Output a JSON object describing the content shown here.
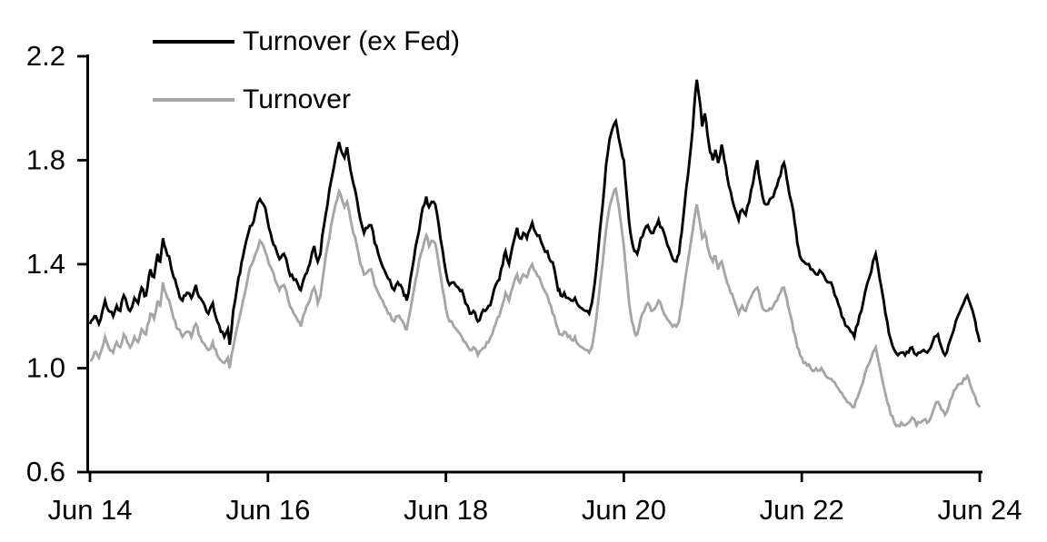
{
  "page": {
    "background": "#ffffff",
    "axis_color": "#000000"
  },
  "chart_data": {
    "type": "line",
    "title": "",
    "xlabel": "",
    "ylabel": "",
    "legend_position": "top-left",
    "grid": false,
    "x_axis": {
      "tick_labels": [
        "Jun 14",
        "Jun 16",
        "Jun 18",
        "Jun 20",
        "Jun 22",
        "Jun 24"
      ],
      "range_years": [
        0,
        10
      ]
    },
    "y_axis": {
      "ticks": [
        0.6,
        1.0,
        1.4,
        1.8,
        2.2
      ],
      "tick_labels": [
        "0.6",
        "1.0",
        "1.4",
        "1.8",
        "2.2"
      ],
      "range": [
        0.6,
        2.2
      ]
    },
    "x_years": [
      0.0,
      0.05,
      0.1,
      0.14,
      0.17,
      0.21,
      0.26,
      0.3,
      0.34,
      0.38,
      0.42,
      0.45,
      0.5,
      0.54,
      0.58,
      0.63,
      0.68,
      0.72,
      0.76,
      0.79,
      0.82,
      0.85,
      0.89,
      0.94,
      0.99,
      1.04,
      1.09,
      1.14,
      1.19,
      1.24,
      1.29,
      1.33,
      1.38,
      1.43,
      1.47,
      1.51,
      1.55,
      1.57,
      1.61,
      1.67,
      1.72,
      1.78,
      1.82,
      1.86,
      1.91,
      1.95,
      1.99,
      2.03,
      2.08,
      2.13,
      2.18,
      2.23,
      2.29,
      2.34,
      2.37,
      2.42,
      2.47,
      2.52,
      2.56,
      2.59,
      2.63,
      2.67,
      2.71,
      2.76,
      2.8,
      2.83,
      2.86,
      2.89,
      2.93,
      2.96,
      3.0,
      3.04,
      3.08,
      3.12,
      3.16,
      3.2,
      3.24,
      3.29,
      3.33,
      3.37,
      3.42,
      3.46,
      3.49,
      3.53,
      3.56,
      3.6,
      3.64,
      3.68,
      3.72,
      3.76,
      3.78,
      3.81,
      3.84,
      3.88,
      3.92,
      3.96,
      4.0,
      4.04,
      4.09,
      4.14,
      4.18,
      4.22,
      4.27,
      4.31,
      4.36,
      4.4,
      4.44,
      4.48,
      4.52,
      4.56,
      4.6,
      4.64,
      4.67,
      4.71,
      4.75,
      4.8,
      4.83,
      4.87,
      4.91,
      4.94,
      4.97,
      5.01,
      5.05,
      5.09,
      5.14,
      5.18,
      5.22,
      5.26,
      5.29,
      5.33,
      5.37,
      5.41,
      5.45,
      5.49,
      5.53,
      5.57,
      5.61,
      5.64,
      5.67,
      5.71,
      5.76,
      5.8,
      5.84,
      5.88,
      5.91,
      5.94,
      5.97,
      6.0,
      6.03,
      6.06,
      6.09,
      6.12,
      6.15,
      6.19,
      6.23,
      6.27,
      6.31,
      6.35,
      6.39,
      6.43,
      6.47,
      6.51,
      6.55,
      6.59,
      6.62,
      6.65,
      6.68,
      6.72,
      6.76,
      6.79,
      6.82,
      6.84,
      6.86,
      6.88,
      6.91,
      6.94,
      6.97,
      7.0,
      7.03,
      7.06,
      7.1,
      7.13,
      7.16,
      7.2,
      7.24,
      7.29,
      7.33,
      7.37,
      7.41,
      7.45,
      7.5,
      7.53,
      7.56,
      7.6,
      7.64,
      7.68,
      7.72,
      7.76,
      7.8,
      7.83,
      7.86,
      7.89,
      7.92,
      7.95,
      7.98,
      8.02,
      8.06,
      8.1,
      8.14,
      8.18,
      8.22,
      8.27,
      8.31,
      8.35,
      8.39,
      8.43,
      8.47,
      8.51,
      8.55,
      8.59,
      8.63,
      8.67,
      8.71,
      8.76,
      8.8,
      8.83,
      8.86,
      8.89,
      8.92,
      8.96,
      9.0,
      9.04,
      9.08,
      9.12,
      9.16,
      9.2,
      9.24,
      9.29,
      9.33,
      9.37,
      9.41,
      9.45,
      9.49,
      9.53,
      9.57,
      9.61,
      9.65,
      9.69,
      9.73,
      9.78,
      9.82,
      9.86,
      9.89,
      9.92,
      9.95,
      9.98,
      10.0
    ],
    "series": [
      {
        "name": "Turnover (ex Fed)",
        "color": "#000000",
        "values": [
          1.17,
          1.2,
          1.17,
          1.22,
          1.26,
          1.22,
          1.2,
          1.24,
          1.22,
          1.28,
          1.24,
          1.22,
          1.27,
          1.25,
          1.31,
          1.28,
          1.38,
          1.35,
          1.44,
          1.41,
          1.5,
          1.46,
          1.43,
          1.35,
          1.3,
          1.26,
          1.29,
          1.27,
          1.32,
          1.27,
          1.24,
          1.21,
          1.25,
          1.18,
          1.14,
          1.12,
          1.15,
          1.09,
          1.22,
          1.35,
          1.43,
          1.52,
          1.55,
          1.6,
          1.65,
          1.63,
          1.58,
          1.52,
          1.47,
          1.42,
          1.44,
          1.38,
          1.34,
          1.32,
          1.3,
          1.36,
          1.4,
          1.47,
          1.41,
          1.44,
          1.55,
          1.63,
          1.72,
          1.81,
          1.87,
          1.83,
          1.81,
          1.85,
          1.76,
          1.71,
          1.65,
          1.57,
          1.52,
          1.54,
          1.55,
          1.48,
          1.44,
          1.39,
          1.36,
          1.34,
          1.3,
          1.33,
          1.32,
          1.28,
          1.26,
          1.34,
          1.42,
          1.5,
          1.58,
          1.63,
          1.66,
          1.62,
          1.64,
          1.63,
          1.55,
          1.46,
          1.37,
          1.32,
          1.33,
          1.31,
          1.3,
          1.25,
          1.21,
          1.22,
          1.18,
          1.21,
          1.22,
          1.24,
          1.27,
          1.32,
          1.34,
          1.4,
          1.45,
          1.4,
          1.47,
          1.54,
          1.5,
          1.52,
          1.5,
          1.53,
          1.56,
          1.52,
          1.51,
          1.47,
          1.45,
          1.41,
          1.38,
          1.3,
          1.28,
          1.29,
          1.27,
          1.26,
          1.27,
          1.24,
          1.23,
          1.22,
          1.21,
          1.25,
          1.32,
          1.45,
          1.62,
          1.78,
          1.88,
          1.93,
          1.95,
          1.89,
          1.84,
          1.8,
          1.68,
          1.56,
          1.49,
          1.45,
          1.44,
          1.5,
          1.53,
          1.55,
          1.52,
          1.54,
          1.57,
          1.54,
          1.5,
          1.46,
          1.42,
          1.41,
          1.44,
          1.52,
          1.62,
          1.74,
          1.87,
          2.0,
          2.11,
          2.06,
          2.01,
          1.93,
          1.98,
          1.9,
          1.83,
          1.8,
          1.84,
          1.79,
          1.86,
          1.8,
          1.74,
          1.68,
          1.62,
          1.57,
          1.61,
          1.59,
          1.64,
          1.71,
          1.8,
          1.72,
          1.66,
          1.63,
          1.65,
          1.66,
          1.7,
          1.74,
          1.79,
          1.73,
          1.67,
          1.63,
          1.56,
          1.48,
          1.43,
          1.41,
          1.4,
          1.38,
          1.37,
          1.36,
          1.37,
          1.34,
          1.33,
          1.31,
          1.27,
          1.23,
          1.19,
          1.16,
          1.14,
          1.12,
          1.17,
          1.22,
          1.29,
          1.35,
          1.41,
          1.44,
          1.38,
          1.32,
          1.26,
          1.18,
          1.11,
          1.07,
          1.05,
          1.06,
          1.05,
          1.06,
          1.08,
          1.05,
          1.06,
          1.07,
          1.06,
          1.08,
          1.12,
          1.13,
          1.08,
          1.05,
          1.09,
          1.13,
          1.18,
          1.22,
          1.25,
          1.28,
          1.25,
          1.22,
          1.18,
          1.13,
          1.1
        ]
      },
      {
        "name": "Turnover",
        "color": "#a6a6a6",
        "values": [
          1.03,
          1.06,
          1.04,
          1.08,
          1.12,
          1.08,
          1.06,
          1.1,
          1.08,
          1.13,
          1.1,
          1.08,
          1.12,
          1.1,
          1.15,
          1.13,
          1.21,
          1.19,
          1.26,
          1.24,
          1.33,
          1.29,
          1.26,
          1.19,
          1.15,
          1.12,
          1.14,
          1.12,
          1.17,
          1.12,
          1.09,
          1.07,
          1.1,
          1.05,
          1.03,
          1.02,
          1.04,
          1.0,
          1.08,
          1.18,
          1.26,
          1.36,
          1.4,
          1.44,
          1.49,
          1.47,
          1.43,
          1.39,
          1.34,
          1.3,
          1.32,
          1.26,
          1.21,
          1.18,
          1.16,
          1.22,
          1.26,
          1.31,
          1.25,
          1.28,
          1.38,
          1.47,
          1.55,
          1.63,
          1.68,
          1.65,
          1.62,
          1.64,
          1.57,
          1.52,
          1.47,
          1.4,
          1.36,
          1.37,
          1.38,
          1.32,
          1.29,
          1.26,
          1.23,
          1.21,
          1.18,
          1.2,
          1.19,
          1.17,
          1.15,
          1.22,
          1.3,
          1.37,
          1.44,
          1.49,
          1.51,
          1.47,
          1.49,
          1.48,
          1.4,
          1.31,
          1.23,
          1.18,
          1.16,
          1.14,
          1.12,
          1.1,
          1.07,
          1.08,
          1.05,
          1.07,
          1.08,
          1.1,
          1.13,
          1.17,
          1.2,
          1.25,
          1.29,
          1.26,
          1.31,
          1.36,
          1.33,
          1.36,
          1.35,
          1.38,
          1.4,
          1.37,
          1.35,
          1.31,
          1.28,
          1.24,
          1.2,
          1.15,
          1.13,
          1.14,
          1.12,
          1.11,
          1.12,
          1.09,
          1.08,
          1.07,
          1.06,
          1.08,
          1.14,
          1.25,
          1.4,
          1.53,
          1.62,
          1.67,
          1.69,
          1.63,
          1.55,
          1.47,
          1.36,
          1.25,
          1.18,
          1.14,
          1.13,
          1.19,
          1.22,
          1.25,
          1.22,
          1.23,
          1.26,
          1.23,
          1.2,
          1.18,
          1.16,
          1.16,
          1.18,
          1.24,
          1.32,
          1.41,
          1.5,
          1.57,
          1.63,
          1.59,
          1.55,
          1.5,
          1.52,
          1.47,
          1.43,
          1.41,
          1.43,
          1.38,
          1.41,
          1.37,
          1.33,
          1.29,
          1.26,
          1.21,
          1.24,
          1.22,
          1.26,
          1.29,
          1.31,
          1.27,
          1.23,
          1.22,
          1.23,
          1.24,
          1.26,
          1.29,
          1.31,
          1.27,
          1.22,
          1.18,
          1.13,
          1.08,
          1.05,
          1.02,
          1.01,
          1.0,
          0.99,
          0.99,
          1.0,
          0.97,
          0.96,
          0.95,
          0.93,
          0.91,
          0.89,
          0.87,
          0.86,
          0.85,
          0.89,
          0.93,
          0.98,
          1.02,
          1.06,
          1.08,
          1.03,
          0.98,
          0.93,
          0.87,
          0.82,
          0.79,
          0.78,
          0.79,
          0.78,
          0.79,
          0.81,
          0.78,
          0.79,
          0.8,
          0.79,
          0.81,
          0.85,
          0.87,
          0.84,
          0.82,
          0.85,
          0.89,
          0.92,
          0.94,
          0.96,
          0.97,
          0.94,
          0.91,
          0.89,
          0.86,
          0.85
        ]
      }
    ]
  }
}
